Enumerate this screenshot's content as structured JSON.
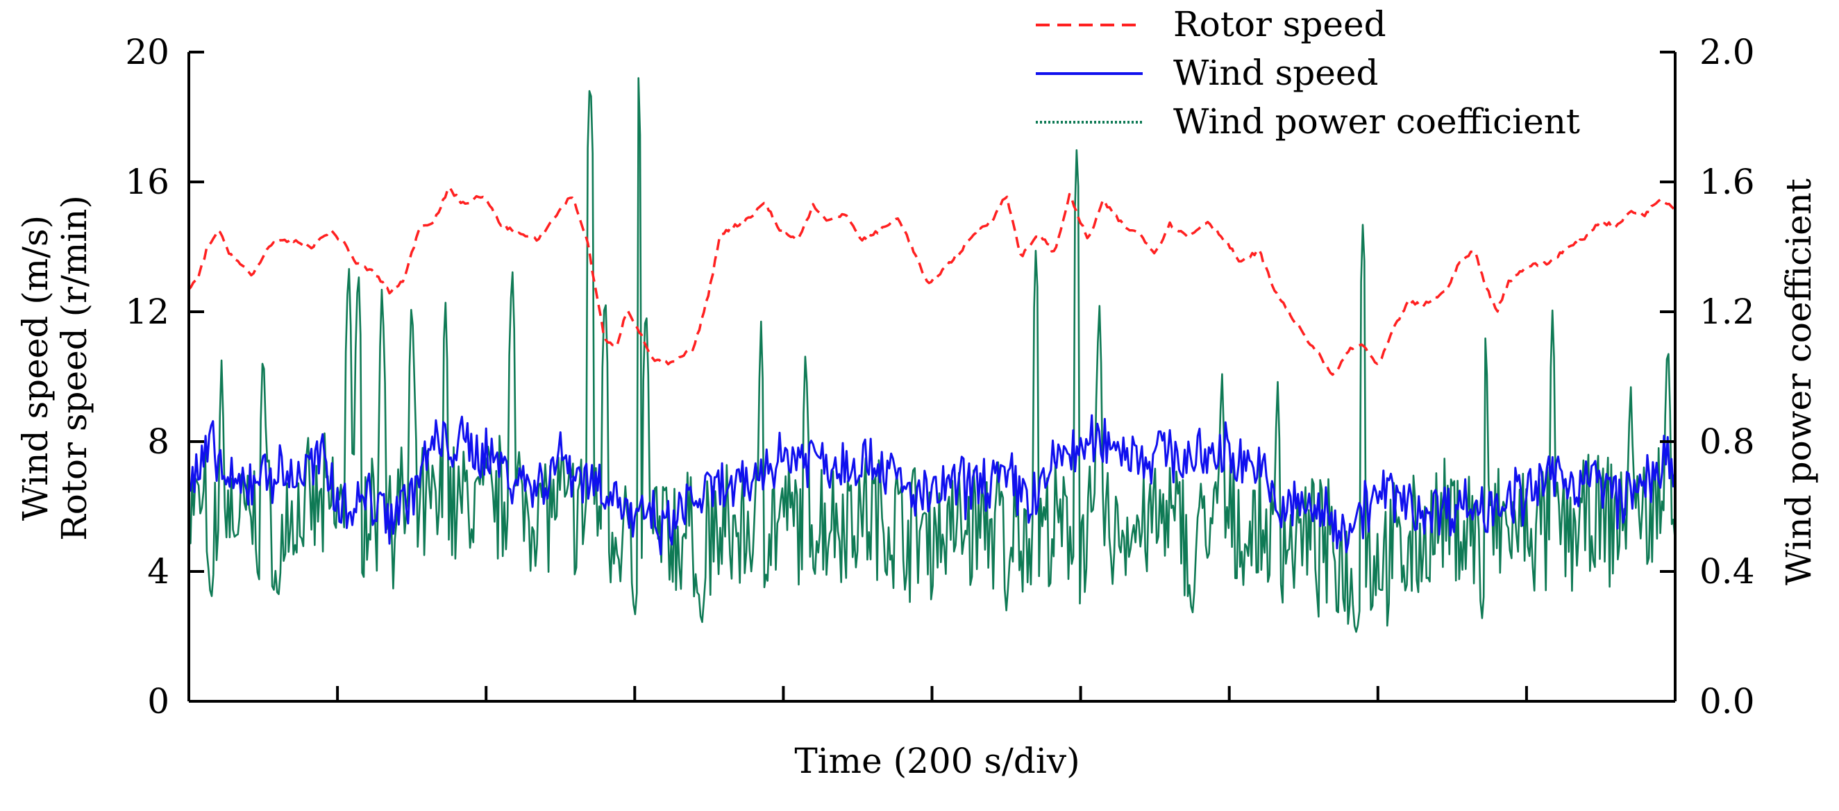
{
  "chart_data": {
    "type": "line",
    "title": "",
    "xlabel": "Time (200 s/div)",
    "ylabel_left": [
      "Wind speed (m/s)",
      "Rotor speed (r/min)"
    ],
    "ylabel_right": "Wind power coefficient",
    "ylim_left": [
      0,
      20
    ],
    "ylim_right": [
      0,
      2
    ],
    "yticks_left": [
      "0",
      "4",
      "8",
      "12",
      "16",
      "20"
    ],
    "yticks_right": [
      "0.0",
      "0.4",
      "0.8",
      "1.2",
      "1.6",
      "2.0"
    ],
    "xlim": [
      0,
      2000
    ],
    "x_divisions": 10,
    "legend_position": "top-right",
    "series": [
      {
        "name": "Rotor speed",
        "axis": "left",
        "color": "#ff2020",
        "style": "dashed",
        "keypoints": [
          [
            0,
            12.7
          ],
          [
            12,
            13.0
          ],
          [
            25,
            14.0
          ],
          [
            40,
            14.5
          ],
          [
            55,
            13.8
          ],
          [
            85,
            13.1
          ],
          [
            110,
            14.1
          ],
          [
            140,
            14.2
          ],
          [
            165,
            14.0
          ],
          [
            190,
            14.5
          ],
          [
            210,
            14.1
          ],
          [
            225,
            13.5
          ],
          [
            250,
            13.2
          ],
          [
            270,
            12.6
          ],
          [
            290,
            13.0
          ],
          [
            310,
            14.6
          ],
          [
            330,
            14.8
          ],
          [
            350,
            15.8
          ],
          [
            370,
            15.3
          ],
          [
            395,
            15.6
          ],
          [
            420,
            14.7
          ],
          [
            445,
            14.4
          ],
          [
            470,
            14.2
          ],
          [
            495,
            15.0
          ],
          [
            515,
            15.6
          ],
          [
            535,
            14.3
          ],
          [
            560,
            11.1
          ],
          [
            575,
            10.9
          ],
          [
            590,
            12.1
          ],
          [
            610,
            11.2
          ],
          [
            625,
            10.5
          ],
          [
            650,
            10.4
          ],
          [
            680,
            10.9
          ],
          [
            700,
            12.6
          ],
          [
            715,
            14.4
          ],
          [
            740,
            14.7
          ],
          [
            760,
            15.0
          ],
          [
            775,
            15.4
          ],
          [
            795,
            14.5
          ],
          [
            820,
            14.2
          ],
          [
            840,
            15.3
          ],
          [
            860,
            14.8
          ],
          [
            885,
            15.0
          ],
          [
            905,
            14.2
          ],
          [
            930,
            14.5
          ],
          [
            955,
            14.9
          ],
          [
            975,
            13.9
          ],
          [
            995,
            12.8
          ],
          [
            1015,
            13.3
          ],
          [
            1040,
            13.9
          ],
          [
            1060,
            14.5
          ],
          [
            1080,
            14.8
          ],
          [
            1100,
            15.6
          ],
          [
            1120,
            13.7
          ],
          [
            1145,
            14.4
          ],
          [
            1165,
            13.8
          ],
          [
            1185,
            15.6
          ],
          [
            1210,
            14.2
          ],
          [
            1230,
            15.4
          ],
          [
            1260,
            14.6
          ],
          [
            1280,
            14.4
          ],
          [
            1300,
            13.8
          ],
          [
            1320,
            14.7
          ],
          [
            1345,
            14.3
          ],
          [
            1370,
            14.8
          ],
          [
            1395,
            14.2
          ],
          [
            1415,
            13.5
          ],
          [
            1440,
            13.9
          ],
          [
            1460,
            12.7
          ],
          [
            1480,
            12.0
          ],
          [
            1500,
            11.3
          ],
          [
            1520,
            10.7
          ],
          [
            1540,
            10.0
          ],
          [
            1560,
            10.8
          ],
          [
            1580,
            11.0
          ],
          [
            1600,
            10.3
          ],
          [
            1620,
            11.4
          ],
          [
            1640,
            12.3
          ],
          [
            1660,
            12.2
          ],
          [
            1690,
            12.6
          ],
          [
            1710,
            13.5
          ],
          [
            1730,
            13.9
          ],
          [
            1745,
            12.8
          ],
          [
            1760,
            12.0
          ],
          [
            1775,
            12.9
          ],
          [
            1800,
            13.4
          ],
          [
            1830,
            13.5
          ],
          [
            1850,
            13.9
          ],
          [
            1875,
            14.2
          ],
          [
            1900,
            14.8
          ],
          [
            1920,
            14.6
          ],
          [
            1940,
            15.1
          ],
          [
            1960,
            15.0
          ],
          [
            1980,
            15.5
          ],
          [
            2000,
            15.2
          ]
        ]
      },
      {
        "name": "Wind speed",
        "axis": "left",
        "color": "#1010ee",
        "style": "solid",
        "keypoints": [
          [
            0,
            6.5
          ],
          [
            30,
            7.8
          ],
          [
            60,
            6.4
          ],
          [
            100,
            7.1
          ],
          [
            140,
            6.9
          ],
          [
            180,
            7.4
          ],
          [
            210,
            6.0
          ],
          [
            240,
            6.3
          ],
          [
            270,
            5.8
          ],
          [
            300,
            6.4
          ],
          [
            330,
            7.9
          ],
          [
            360,
            7.9
          ],
          [
            400,
            7.7
          ],
          [
            440,
            6.9
          ],
          [
            470,
            6.6
          ],
          [
            500,
            7.6
          ],
          [
            525,
            7.0
          ],
          [
            555,
            6.7
          ],
          [
            580,
            6.2
          ],
          [
            600,
            5.4
          ],
          [
            620,
            5.7
          ],
          [
            640,
            5.1
          ],
          [
            660,
            5.8
          ],
          [
            680,
            6.2
          ],
          [
            700,
            6.4
          ],
          [
            720,
            6.5
          ],
          [
            750,
            6.5
          ],
          [
            780,
            7.4
          ],
          [
            810,
            7.6
          ],
          [
            840,
            7.6
          ],
          [
            870,
            7.3
          ],
          [
            900,
            7.5
          ],
          [
            930,
            7.4
          ],
          [
            960,
            6.6
          ],
          [
            990,
            6.2
          ],
          [
            1020,
            6.6
          ],
          [
            1050,
            6.6
          ],
          [
            1080,
            6.9
          ],
          [
            1110,
            6.7
          ],
          [
            1140,
            6.2
          ],
          [
            1170,
            7.6
          ],
          [
            1200,
            7.7
          ],
          [
            1230,
            8.1
          ],
          [
            1260,
            7.8
          ],
          [
            1290,
            7.5
          ],
          [
            1320,
            7.8
          ],
          [
            1350,
            7.3
          ],
          [
            1380,
            7.7
          ],
          [
            1410,
            7.6
          ],
          [
            1440,
            7.2
          ],
          [
            1460,
            6.1
          ],
          [
            1480,
            5.9
          ],
          [
            1500,
            6.1
          ],
          [
            1520,
            5.8
          ],
          [
            1540,
            5.6
          ],
          [
            1560,
            5.4
          ],
          [
            1590,
            6.2
          ],
          [
            1620,
            6.4
          ],
          [
            1650,
            5.9
          ],
          [
            1680,
            5.9
          ],
          [
            1710,
            6.1
          ],
          [
            1740,
            5.9
          ],
          [
            1770,
            6.4
          ],
          [
            1800,
            6.2
          ],
          [
            1830,
            6.9
          ],
          [
            1860,
            6.8
          ],
          [
            1890,
            6.9
          ],
          [
            1920,
            6.3
          ],
          [
            1950,
            6.4
          ],
          [
            1980,
            7.4
          ],
          [
            2000,
            6.9
          ]
        ]
      },
      {
        "name": "Wind power coefficient",
        "axis": "right",
        "color": "#0f7a55",
        "style": "dotted",
        "baseline_keypoints": [
          [
            0,
            0.6
          ],
          [
            100,
            0.55
          ],
          [
            200,
            0.6
          ],
          [
            300,
            0.58
          ],
          [
            400,
            0.62
          ],
          [
            500,
            0.6
          ],
          [
            560,
            0.55
          ],
          [
            620,
            0.52
          ],
          [
            700,
            0.5
          ],
          [
            800,
            0.55
          ],
          [
            900,
            0.58
          ],
          [
            1000,
            0.52
          ],
          [
            1100,
            0.55
          ],
          [
            1200,
            0.5
          ],
          [
            1300,
            0.55
          ],
          [
            1400,
            0.53
          ],
          [
            1500,
            0.5
          ],
          [
            1560,
            0.42
          ],
          [
            1620,
            0.45
          ],
          [
            1700,
            0.55
          ],
          [
            1800,
            0.52
          ],
          [
            1900,
            0.55
          ],
          [
            2000,
            0.6
          ]
        ],
        "peaks": [
          [
            44,
            1.05
          ],
          [
            100,
            1.12
          ],
          [
            215,
            1.38
          ],
          [
            228,
            1.37
          ],
          [
            260,
            1.3
          ],
          [
            300,
            1.27
          ],
          [
            345,
            1.26
          ],
          [
            435,
            1.37
          ],
          [
            540,
            1.96
          ],
          [
            605,
            1.92
          ],
          [
            560,
            1.3
          ],
          [
            615,
            1.26
          ],
          [
            770,
            1.17
          ],
          [
            830,
            1.11
          ],
          [
            1140,
            1.42
          ],
          [
            1195,
            1.73
          ],
          [
            1225,
            1.25
          ],
          [
            1390,
            1.04
          ],
          [
            1465,
            1.0
          ],
          [
            1580,
            1.5
          ],
          [
            1745,
            1.15
          ],
          [
            1835,
            1.22
          ],
          [
            1940,
            1.0
          ],
          [
            1990,
            1.15
          ]
        ],
        "troughs": [
          [
            30,
            0.3
          ],
          [
            120,
            0.3
          ],
          [
            600,
            0.25
          ],
          [
            690,
            0.22
          ],
          [
            1100,
            0.28
          ],
          [
            1350,
            0.25
          ],
          [
            1570,
            0.19
          ],
          [
            1740,
            0.25
          ]
        ]
      }
    ]
  }
}
